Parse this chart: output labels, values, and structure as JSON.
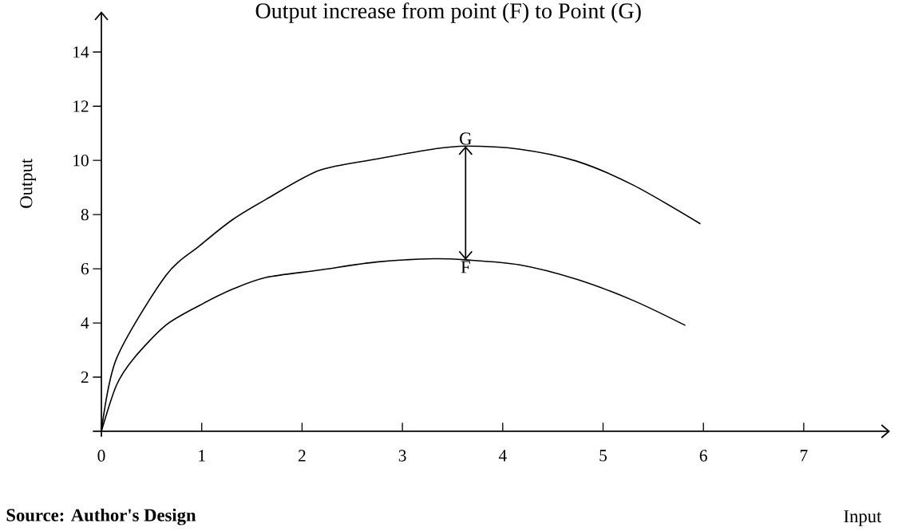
{
  "chart_data": {
    "type": "line",
    "title": "Output increase from point (F) to Point (G)",
    "xlabel": "Input",
    "ylabel": "Output",
    "xlim": [
      0,
      7.86
    ],
    "ylim": [
      0,
      15.5
    ],
    "xticks": [
      0,
      1,
      2,
      3,
      4,
      5,
      6,
      7
    ],
    "yticks": [
      2,
      4,
      6,
      8,
      10,
      12,
      14
    ],
    "series": [
      {
        "color": "#000000",
        "x": [
          0,
          0.15,
          0.64,
          0.98,
          1.31,
          1.64,
          2.17,
          2.74,
          3.31,
          3.63,
          4.16,
          4.73,
          5.3,
          5.97
        ],
        "values": [
          0,
          2.68,
          5.74,
          6.85,
          7.82,
          8.56,
          9.63,
          10.05,
          10.42,
          10.53,
          10.42,
          9.98,
          9.09,
          7.66
        ]
      },
      {
        "color": "#000000",
        "x": [
          0,
          0.15,
          0.32,
          0.64,
          0.98,
          1.31,
          1.64,
          2.17,
          2.74,
          3.31,
          3.63,
          4.16,
          4.73,
          5.3,
          5.82
        ],
        "values": [
          0,
          1.7,
          2.68,
          3.91,
          4.65,
          5.25,
          5.68,
          5.95,
          6.25,
          6.37,
          6.33,
          6.15,
          5.62,
          4.83,
          3.91
        ]
      }
    ],
    "annotations": [
      {
        "text": "G",
        "x": 3.63,
        "y": 10.53
      },
      {
        "text": "F",
        "x": 3.63,
        "y": 6.33
      },
      "Source: Author's Design"
    ]
  }
}
